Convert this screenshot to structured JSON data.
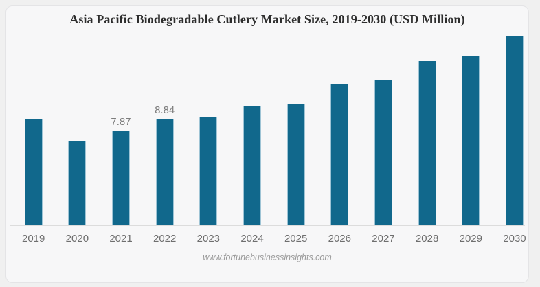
{
  "chart_data": {
    "type": "bar",
    "title": "Asia Pacific Biodegradable Cutlery Market Size, 2019-2030 (USD Million)",
    "categories": [
      "2019",
      "2020",
      "2021",
      "2022",
      "2023",
      "2024",
      "2025",
      "2026",
      "2027",
      "2028",
      "2029",
      "2030"
    ],
    "values": [
      8.85,
      7.04,
      7.87,
      8.84,
      9.01,
      9.95,
      10.16,
      11.74,
      12.13,
      13.69,
      14.09,
      15.78
    ],
    "data_labels": [
      "",
      "",
      "7.87",
      "8.84",
      "",
      "",
      "",
      "",
      "",
      "",
      "",
      ""
    ],
    "xlabel": "",
    "ylabel": "",
    "ylim": [
      0,
      16.5
    ],
    "grid": false,
    "legend": false,
    "bar_color": "#11688C",
    "bar_edge_color": "#CDE3EE",
    "data_label_color": "#7d7d7d",
    "tick_label_color": "#6e6e6e",
    "axis_line_color": "#dcdcdc",
    "title_color": "#2d2d2d",
    "card_background": "#f7f7f8",
    "page_background": "#f0f0f0"
  },
  "footer": {
    "website": "www.fortunebusinessinsights.com"
  }
}
